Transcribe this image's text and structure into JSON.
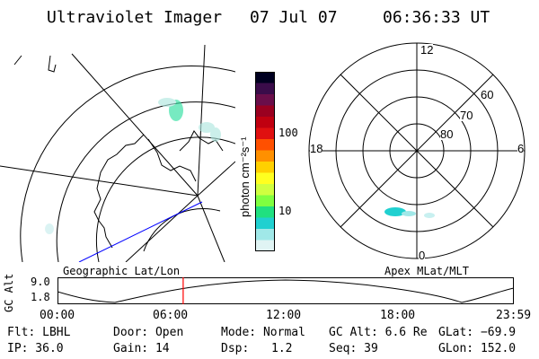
{
  "header": {
    "instrument": "Ultraviolet Imager",
    "date": "07 Jul 07",
    "time": "06:36:33 UT"
  },
  "colorbar": {
    "unit_label": "photon cm⁻²s⁻¹",
    "ticks": [
      "100",
      "10"
    ],
    "colors": [
      "#000020",
      "#3a0c4a",
      "#6a0e4a",
      "#9a0020",
      "#c00010",
      "#e01010",
      "#ff5000",
      "#ff9000",
      "#ffd000",
      "#ffff20",
      "#d0ff40",
      "#80ff40",
      "#20e080",
      "#20d0d0",
      "#a0e8e8",
      "#e0f4f4"
    ]
  },
  "geographic_panel": {
    "label": "Geographic Lat/Lon",
    "line_color": "#000000",
    "orbit_track_color": "#0000ff"
  },
  "polar_panel": {
    "label": "Apex MLat/MLT",
    "mlt_labels": {
      "top": "12",
      "left": "18",
      "right": "6",
      "bottom": "0"
    },
    "lat_labels": [
      "60",
      "70",
      "80"
    ]
  },
  "orbit_plot": {
    "axis_label": "GC Alt",
    "y_max": "9.0",
    "y_min": "1.8",
    "x_ticks": [
      "00:00",
      "06:00",
      "12:00",
      "18:00",
      "23:59"
    ],
    "marker_color": "#ff0000",
    "current_time_hours": 6.61
  },
  "status": {
    "filter": "Flt: LBHL",
    "door": "Door: Open",
    "mode": "Mode: Normal",
    "gc_alt": "GC Alt: 6.6 Re",
    "glat": "GLat: −69.9",
    "ip": "IP: 36.0",
    "gain": "Gain: 14",
    "dsp_label": "Dsp:",
    "dsp_value": "1.2",
    "seq": "Seq: 39",
    "glon": "GLon: 152.0"
  }
}
